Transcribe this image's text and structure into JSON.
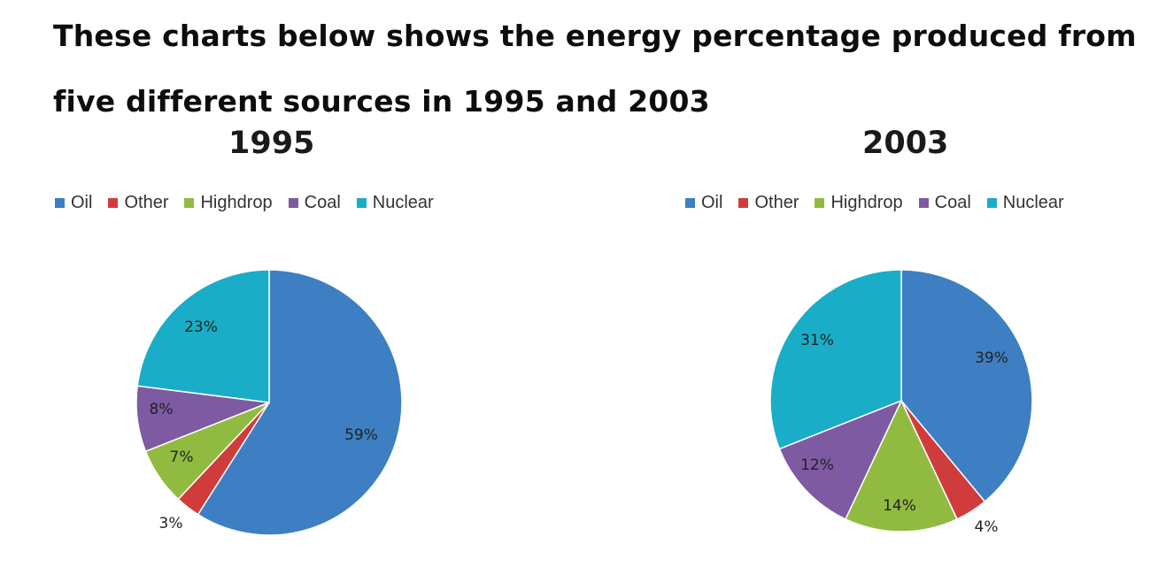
{
  "headline": {
    "line1": "These charts below shows the energy percentage produced from",
    "line2": "five different sources in 1995 and 2003"
  },
  "chart_data": [
    {
      "type": "pie",
      "title": "1995",
      "categories": [
        "Oil",
        "Other",
        "Highdrop",
        "Coal",
        "Nuclear"
      ],
      "values": [
        59,
        3,
        7,
        8,
        23
      ],
      "labels": [
        "59%",
        "3%",
        "7%",
        "8%",
        "23%"
      ],
      "colors": [
        "#3d7fc2",
        "#d03c3c",
        "#91bb40",
        "#7e5aa2",
        "#19adc8"
      ],
      "legend": "top"
    },
    {
      "type": "pie",
      "title": "2003",
      "categories": [
        "Oil",
        "Other",
        "Highdrop",
        "Coal",
        "Nuclear"
      ],
      "values": [
        39,
        4,
        14,
        12,
        31
      ],
      "labels": [
        "39%",
        "4%",
        "14%",
        "12%",
        "31%"
      ],
      "colors": [
        "#3d7fc2",
        "#d03c3c",
        "#91bb40",
        "#7e5aa2",
        "#19adc8"
      ],
      "legend": "top"
    }
  ]
}
